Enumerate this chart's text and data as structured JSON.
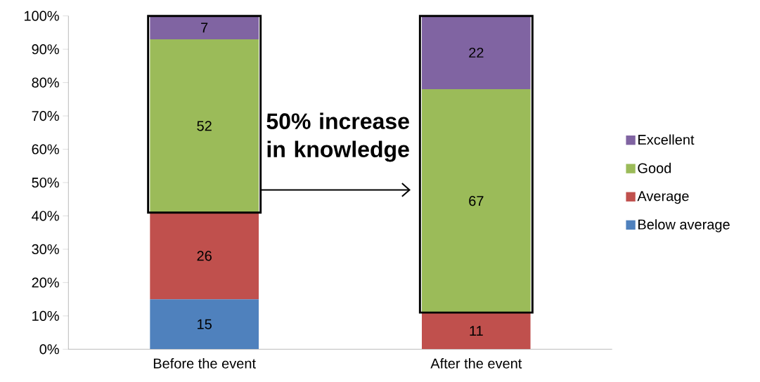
{
  "chart_data": {
    "type": "bar",
    "stacked": true,
    "categories": [
      "Before the event",
      "After  the event"
    ],
    "series": [
      {
        "name": "Below average",
        "color": "#4f81bd",
        "values": [
          15,
          0
        ],
        "value_labels": [
          "15",
          null
        ]
      },
      {
        "name": "Average",
        "color": "#c0504d",
        "values": [
          26,
          11
        ],
        "value_labels": [
          "26",
          "11"
        ]
      },
      {
        "name": "Good",
        "color": "#9bbb59",
        "values": [
          52,
          67
        ],
        "value_labels": [
          "52",
          "67"
        ]
      },
      {
        "name": "Excellent",
        "color": "#8064a2",
        "values": [
          7,
          22
        ],
        "value_labels": [
          "7",
          "22"
        ]
      }
    ],
    "ylim": [
      0,
      100
    ],
    "yticks": [
      {
        "value": 0,
        "label": "0%"
      },
      {
        "value": 10,
        "label": "10%"
      },
      {
        "value": 20,
        "label": "20%"
      },
      {
        "value": 30,
        "label": "30%"
      },
      {
        "value": 40,
        "label": "40%"
      },
      {
        "value": 50,
        "label": "50%"
      },
      {
        "value": 60,
        "label": "60%"
      },
      {
        "value": 70,
        "label": "70%"
      },
      {
        "value": 80,
        "label": "80%"
      },
      {
        "value": 90,
        "label": "90%"
      },
      {
        "value": 100,
        "label": "100%"
      }
    ],
    "legend": "right",
    "grid": false,
    "annotations": [
      "50% increase in knowledge"
    ]
  }
}
